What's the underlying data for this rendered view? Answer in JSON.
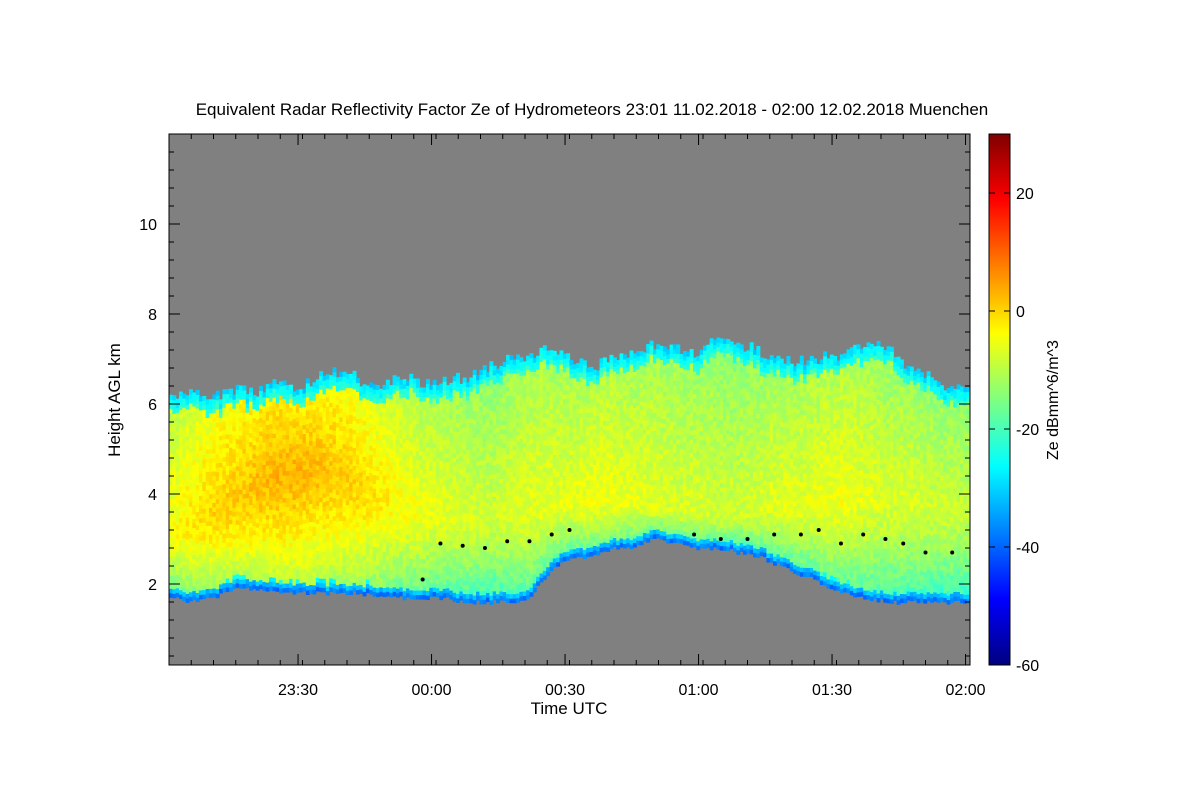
{
  "chart_data": {
    "type": "heatmap",
    "title": "Equivalent Radar Reflectivity Factor Ze of Hydrometeors   23:01 11.02.2018 - 02:00 12.02.2018 Muenchen",
    "xlabel": "Time UTC",
    "ylabel": "Height AGL km",
    "x_ticks": [
      {
        "minute": 29,
        "label": "23:30"
      },
      {
        "minute": 59,
        "label": "00:00"
      },
      {
        "minute": 89,
        "label": "00:30"
      },
      {
        "minute": 119,
        "label": "01:00"
      },
      {
        "minute": 149,
        "label": "01:30"
      },
      {
        "minute": 179,
        "label": "02:00"
      }
    ],
    "xlim_minutes": [
      0,
      180
    ],
    "x_start_time": "23:01",
    "y_ticks": [
      2,
      4,
      6,
      8,
      10
    ],
    "ylim": [
      0.2,
      12
    ],
    "colorbar": {
      "label": "Ze dBmm^6/m^3",
      "ticks": [
        -60,
        -40,
        -20,
        0,
        20
      ],
      "range": [
        -60,
        30
      ],
      "colors": [
        "#000080",
        "#0000ff",
        "#0080ff",
        "#00ffff",
        "#80ff80",
        "#ffff00",
        "#ff8000",
        "#ff0000",
        "#800000"
      ]
    },
    "background_color": "#808080",
    "cloud_top_km": [
      6.2,
      6.2,
      6.1,
      6.3,
      6.2,
      6.4,
      6.3,
      6.5,
      6.7,
      6.5,
      6.4,
      6.6,
      6.4,
      6.5,
      6.5,
      6.7,
      6.9,
      7.1,
      7.2,
      7.0,
      6.8,
      7.0,
      7.1,
      7.3,
      7.2,
      7.1,
      7.4,
      7.3,
      7.1,
      6.9,
      6.9,
      7.0,
      7.1,
      7.3,
      7.2,
      6.8,
      6.6,
      6.3,
      6.3
    ],
    "cloud_base_km": [
      1.7,
      1.6,
      1.7,
      1.9,
      1.9,
      1.8,
      1.8,
      1.8,
      1.8,
      1.8,
      1.7,
      1.7,
      1.7,
      1.7,
      1.6,
      1.6,
      1.6,
      1.7,
      2.3,
      2.6,
      2.6,
      2.8,
      2.8,
      3.0,
      2.9,
      2.8,
      2.8,
      2.7,
      2.6,
      2.4,
      2.2,
      2.0,
      1.8,
      1.7,
      1.6,
      1.6,
      1.6,
      1.6,
      1.6
    ],
    "peak_layer_km": [
      3.1,
      3.3,
      3.6,
      3.8,
      4.2,
      4.4,
      4.5,
      4.6,
      4.4,
      4.2,
      3.9,
      3.7,
      3.6,
      3.5,
      3.4,
      3.4,
      3.5,
      3.6,
      3.7,
      3.7,
      3.8,
      3.8,
      3.8,
      3.7,
      3.6,
      3.6,
      3.5,
      3.5,
      3.6,
      3.7,
      3.7,
      3.8,
      3.8,
      3.9,
      3.8,
      3.8,
      3.7,
      3.7,
      3.7
    ],
    "peak_ze_dbz": [
      -4,
      -2,
      0,
      1,
      2,
      3,
      3,
      2,
      1,
      0,
      -2,
      -4,
      -5,
      -6,
      -7,
      -8,
      -7,
      -6,
      -6,
      -6,
      -5,
      -5,
      -6,
      -6,
      -7,
      -7,
      -8,
      -8,
      -7,
      -6,
      -6,
      -5,
      -5,
      -6,
      -7,
      -7,
      -8,
      -8,
      -9
    ],
    "melting_layer_km": [
      {
        "minute": 57,
        "value": 2.1
      },
      {
        "minute": 61,
        "value": 2.9
      },
      {
        "minute": 66,
        "value": 2.85
      },
      {
        "minute": 71,
        "value": 2.8
      },
      {
        "minute": 76,
        "value": 2.95
      },
      {
        "minute": 81,
        "value": 2.95
      },
      {
        "minute": 86,
        "value": 3.1
      },
      {
        "minute": 90,
        "value": 3.2
      },
      {
        "minute": 118,
        "value": 3.1
      },
      {
        "minute": 124,
        "value": 3.0
      },
      {
        "minute": 130,
        "value": 3.0
      },
      {
        "minute": 136,
        "value": 3.1
      },
      {
        "minute": 142,
        "value": 3.1
      },
      {
        "minute": 146,
        "value": 3.2
      },
      {
        "minute": 151,
        "value": 2.9
      },
      {
        "minute": 156,
        "value": 3.1
      },
      {
        "minute": 161,
        "value": 3.0
      },
      {
        "minute": 165,
        "value": 2.9
      },
      {
        "minute": 170,
        "value": 2.7
      },
      {
        "minute": 176,
        "value": 2.7
      }
    ]
  }
}
